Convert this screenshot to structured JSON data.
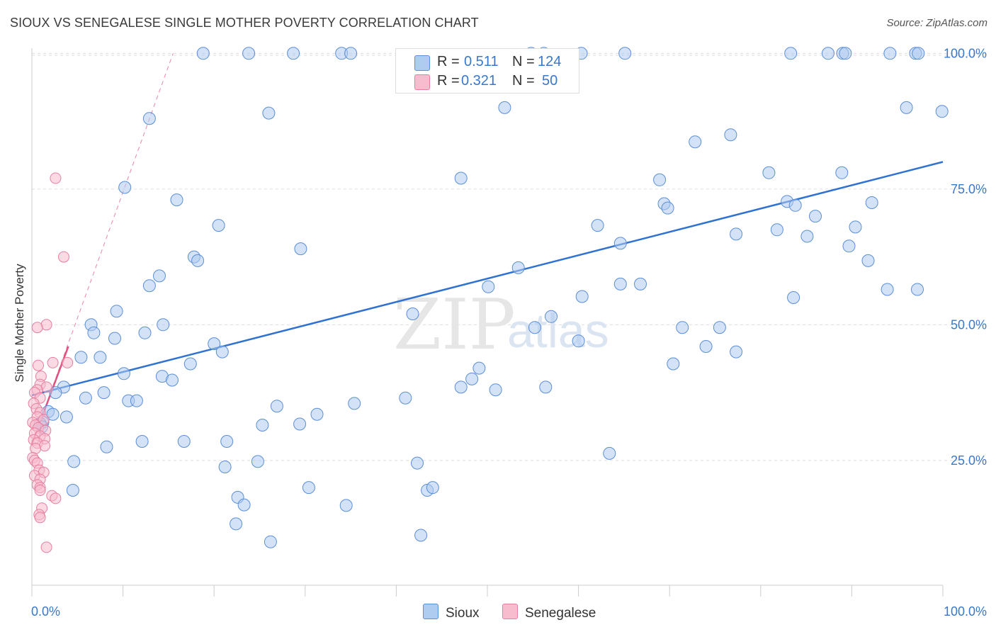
{
  "title": "SIOUX VS SENEGALESE SINGLE MOTHER POVERTY CORRELATION CHART",
  "source": "Source: ZipAtlas.com",
  "watermark": {
    "zip": "ZIP",
    "atlas": "atlas"
  },
  "legend": {
    "r_label": "R =",
    "n_label": "N =",
    "sioux": {
      "r": "0.511",
      "n": "124"
    },
    "senegalese": {
      "r": "0.321",
      "n": "50"
    }
  },
  "colors": {
    "sioux_fill": "#aecbf0",
    "sioux_stroke": "#5b8fd6",
    "sioux_line": "#2f72d2",
    "senegalese_fill": "#f7bccd",
    "senegalese_stroke": "#e57fa0",
    "senegalese_line": "#e0527f",
    "axis_label_blue": "#3a78c9",
    "grid": "#dddddd"
  },
  "chart_data": {
    "type": "scatter",
    "title": "SIOUX VS SENEGALESE SINGLE MOTHER POVERTY CORRELATION CHART",
    "xlabel": "",
    "ylabel": "Single Mother Poverty",
    "xlim": [
      0,
      100
    ],
    "ylim": [
      2,
      102
    ],
    "x_tick_labels": [
      "0.0%",
      "100.0%"
    ],
    "y_ticks": [
      25,
      50,
      75,
      100
    ],
    "y_tick_labels": [
      "25.0%",
      "50.0%",
      "75.0%",
      "100.0%"
    ],
    "grid": true,
    "legend_position": "bottom-center",
    "series": [
      {
        "name": "Sioux",
        "R": 0.511,
        "N": 124,
        "trendline": {
          "x": [
            0,
            100
          ],
          "y": [
            37,
            80
          ]
        },
        "points": [
          [
            18.8,
            100
          ],
          [
            23.8,
            100
          ],
          [
            28.7,
            100
          ],
          [
            34.0,
            100
          ],
          [
            35.0,
            100
          ],
          [
            54.8,
            100
          ],
          [
            56.2,
            100
          ],
          [
            60.3,
            100
          ],
          [
            65.1,
            100
          ],
          [
            83.3,
            100
          ],
          [
            87.4,
            100
          ],
          [
            89.0,
            100
          ],
          [
            89.3,
            100
          ],
          [
            94.2,
            100
          ],
          [
            97.0,
            100
          ],
          [
            97.3,
            100
          ],
          [
            12.9,
            88.0
          ],
          [
            26.0,
            89.0
          ],
          [
            51.9,
            90.0
          ],
          [
            96.0,
            90.0
          ],
          [
            99.9,
            89.3
          ],
          [
            72.8,
            83.7
          ],
          [
            76.7,
            85.0
          ],
          [
            10.2,
            75.3
          ],
          [
            47.1,
            77.0
          ],
          [
            68.9,
            76.7
          ],
          [
            80.9,
            78.0
          ],
          [
            88.9,
            78.0
          ],
          [
            15.9,
            73.0
          ],
          [
            20.5,
            68.3
          ],
          [
            62.1,
            68.3
          ],
          [
            69.4,
            72.3
          ],
          [
            69.8,
            71.5
          ],
          [
            77.3,
            66.7
          ],
          [
            81.8,
            67.5
          ],
          [
            82.9,
            72.7
          ],
          [
            83.8,
            72.0
          ],
          [
            85.1,
            66.3
          ],
          [
            86.0,
            70.0
          ],
          [
            89.7,
            64.5
          ],
          [
            90.4,
            68.0
          ],
          [
            91.8,
            61.8
          ],
          [
            92.2,
            72.5
          ],
          [
            64.6,
            65.0
          ],
          [
            17.8,
            62.5
          ],
          [
            18.2,
            61.8
          ],
          [
            29.5,
            64.0
          ],
          [
            14.0,
            59.0
          ],
          [
            12.9,
            57.2
          ],
          [
            53.4,
            60.5
          ],
          [
            50.1,
            57.0
          ],
          [
            60.4,
            55.2
          ],
          [
            64.6,
            57.5
          ],
          [
            66.8,
            57.5
          ],
          [
            83.6,
            55.0
          ],
          [
            93.9,
            56.5
          ],
          [
            97.2,
            56.5
          ],
          [
            9.3,
            52.5
          ],
          [
            6.5,
            50.0
          ],
          [
            6.8,
            48.5
          ],
          [
            9.1,
            47.5
          ],
          [
            12.4,
            48.5
          ],
          [
            14.4,
            50.0
          ],
          [
            20.0,
            46.5
          ],
          [
            20.9,
            45.0
          ],
          [
            41.8,
            52.0
          ],
          [
            55.2,
            49.5
          ],
          [
            57.0,
            51.5
          ],
          [
            60.0,
            47.0
          ],
          [
            71.4,
            49.5
          ],
          [
            75.5,
            49.5
          ],
          [
            74.0,
            46.0
          ],
          [
            77.3,
            45.0
          ],
          [
            5.4,
            44.0
          ],
          [
            7.5,
            44.0
          ],
          [
            10.1,
            41.0
          ],
          [
            17.4,
            42.8
          ],
          [
            14.3,
            40.5
          ],
          [
            15.4,
            39.8
          ],
          [
            49.1,
            42.0
          ],
          [
            48.3,
            40.0
          ],
          [
            47.1,
            38.5
          ],
          [
            50.9,
            38.0
          ],
          [
            56.4,
            38.5
          ],
          [
            70.4,
            42.8
          ],
          [
            3.5,
            38.5
          ],
          [
            2.6,
            37.5
          ],
          [
            5.9,
            36.5
          ],
          [
            7.9,
            37.5
          ],
          [
            10.6,
            36.0
          ],
          [
            11.5,
            36.0
          ],
          [
            26.9,
            35.0
          ],
          [
            35.4,
            35.5
          ],
          [
            41.0,
            36.5
          ],
          [
            1.8,
            34.0
          ],
          [
            2.3,
            33.5
          ],
          [
            3.8,
            33.0
          ],
          [
            1.2,
            32.0
          ],
          [
            0.9,
            31.8
          ],
          [
            1.1,
            31.2
          ],
          [
            25.3,
            31.5
          ],
          [
            29.4,
            31.7
          ],
          [
            31.3,
            33.5
          ],
          [
            8.2,
            27.5
          ],
          [
            12.1,
            28.5
          ],
          [
            16.7,
            28.5
          ],
          [
            21.4,
            28.5
          ],
          [
            21.2,
            23.8
          ],
          [
            24.8,
            24.8
          ],
          [
            42.3,
            24.5
          ],
          [
            63.4,
            26.3
          ],
          [
            4.6,
            24.8
          ],
          [
            4.5,
            19.5
          ],
          [
            22.6,
            18.2
          ],
          [
            23.3,
            16.8
          ],
          [
            30.4,
            20.0
          ],
          [
            34.5,
            16.7
          ],
          [
            43.4,
            19.5
          ],
          [
            44.0,
            20.0
          ],
          [
            22.4,
            13.3
          ],
          [
            26.2,
            10.0
          ],
          [
            42.7,
            11.2
          ]
        ]
      },
      {
        "name": "Senegalese",
        "R": 0.321,
        "N": 50,
        "trendline": {
          "x": [
            0,
            4.0
          ],
          "y": [
            28,
            46
          ]
        },
        "trendline_extension": {
          "x": [
            0,
            15.5
          ],
          "y": [
            28,
            100
          ]
        },
        "points": [
          [
            2.6,
            77.0
          ],
          [
            3.5,
            62.5
          ],
          [
            1.6,
            50.0
          ],
          [
            0.6,
            49.5
          ],
          [
            2.3,
            43.0
          ],
          [
            3.9,
            43.0
          ],
          [
            0.7,
            42.5
          ],
          [
            1.0,
            40.5
          ],
          [
            0.9,
            39.0
          ],
          [
            1.6,
            38.5
          ],
          [
            0.6,
            38.0
          ],
          [
            0.3,
            37.5
          ],
          [
            0.9,
            36.5
          ],
          [
            0.2,
            35.5
          ],
          [
            0.5,
            34.5
          ],
          [
            0.9,
            33.8
          ],
          [
            0.6,
            33.0
          ],
          [
            1.3,
            32.5
          ],
          [
            0.1,
            32.0
          ],
          [
            0.4,
            31.5
          ],
          [
            0.7,
            31.0
          ],
          [
            1.5,
            30.5
          ],
          [
            0.3,
            30.0
          ],
          [
            0.9,
            29.5
          ],
          [
            1.4,
            29.0
          ],
          [
            0.2,
            28.8
          ],
          [
            0.6,
            28.2
          ],
          [
            1.4,
            27.7
          ],
          [
            0.4,
            27.2
          ],
          [
            0.1,
            25.5
          ],
          [
            0.3,
            25.0
          ],
          [
            0.6,
            24.5
          ],
          [
            0.8,
            23.2
          ],
          [
            1.3,
            22.8
          ],
          [
            0.3,
            22.2
          ],
          [
            0.9,
            21.5
          ],
          [
            0.6,
            20.5
          ],
          [
            0.9,
            20.0
          ],
          [
            0.9,
            19.5
          ],
          [
            2.2,
            18.5
          ],
          [
            2.6,
            18.0
          ],
          [
            1.1,
            16.2
          ],
          [
            0.8,
            15.0
          ],
          [
            0.9,
            14.5
          ],
          [
            1.6,
            9.0
          ]
        ]
      }
    ]
  }
}
